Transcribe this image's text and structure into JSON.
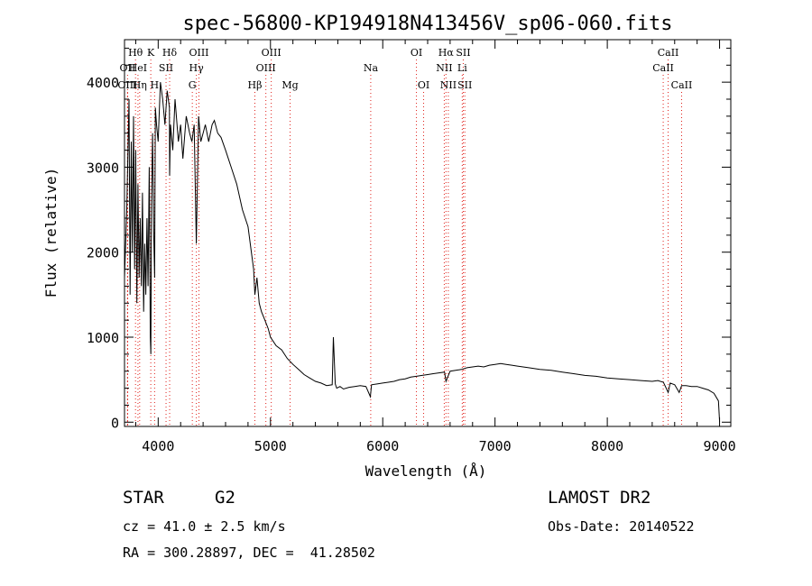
{
  "chart_data": {
    "type": "line",
    "title": "spec-56800-KP194918N413456V_sp06-060.fits",
    "xlabel": "Wavelength (Å)",
    "ylabel": "Flux (relative)",
    "xlim": [
      3700,
      9100
    ],
    "ylim": [
      -50,
      4500
    ],
    "x_ticks": [
      4000,
      5000,
      6000,
      7000,
      8000,
      9000
    ],
    "y_ticks": [
      0,
      1000,
      2000,
      3000,
      4000
    ],
    "grid": false,
    "series": [
      {
        "x": [
          3700,
          3720,
          3740,
          3750,
          3760,
          3770,
          3780,
          3790,
          3800,
          3810,
          3820,
          3830,
          3840,
          3850,
          3860,
          3870,
          3880,
          3890,
          3900,
          3910,
          3920,
          3930,
          3935,
          3940,
          3950,
          3960,
          3968,
          3975,
          3985,
          4000,
          4020,
          4040,
          4060,
          4080,
          4100,
          4102,
          4110,
          4130,
          4150,
          4180,
          4200,
          4220,
          4250,
          4280,
          4300,
          4320,
          4340,
          4360,
          4380,
          4400,
          4420,
          4450,
          4480,
          4500,
          4530,
          4560,
          4600,
          4650,
          4700,
          4750,
          4800,
          4830,
          4850,
          4861,
          4880,
          4900,
          4920,
          4950,
          4980,
          5000,
          5050,
          5100,
          5150,
          5200,
          5250,
          5300,
          5350,
          5400,
          5450,
          5500,
          5550,
          5560,
          5577,
          5590,
          5620,
          5650,
          5700,
          5750,
          5800,
          5850,
          5890,
          5900,
          5950,
          6000,
          6050,
          6100,
          6150,
          6200,
          6250,
          6300,
          6350,
          6400,
          6450,
          6500,
          6550,
          6563,
          6600,
          6650,
          6700,
          6750,
          6800,
          6850,
          6900,
          6950,
          7000,
          7050,
          7100,
          7150,
          7200,
          7300,
          7400,
          7500,
          7600,
          7700,
          7800,
          7900,
          8000,
          8100,
          8200,
          8300,
          8400,
          8450,
          8500,
          8542,
          8560,
          8600,
          8640,
          8662,
          8700,
          8750,
          8800,
          8850,
          8900,
          8950,
          8990,
          9000
        ],
        "y": [
          1700,
          2500,
          3800,
          1500,
          3300,
          2000,
          3600,
          1800,
          3200,
          1400,
          2800,
          1700,
          2400,
          1600,
          2700,
          1300,
          2100,
          1500,
          2400,
          1600,
          3000,
          1000,
          800,
          2600,
          3400,
          2200,
          1700,
          3700,
          3500,
          3300,
          4000,
          3800,
          3500,
          3900,
          3700,
          2900,
          3500,
          3200,
          3800,
          3300,
          3500,
          3100,
          3600,
          3400,
          3300,
          3500,
          2100,
          3600,
          3300,
          3400,
          3500,
          3300,
          3500,
          3550,
          3400,
          3350,
          3200,
          3000,
          2800,
          2500,
          2300,
          2000,
          1800,
          1500,
          1700,
          1400,
          1300,
          1200,
          1100,
          1000,
          900,
          850,
          750,
          680,
          620,
          560,
          520,
          480,
          460,
          430,
          440,
          1000,
          450,
          400,
          420,
          390,
          410,
          420,
          430,
          420,
          300,
          440,
          450,
          460,
          470,
          480,
          500,
          510,
          530,
          540,
          550,
          560,
          570,
          580,
          590,
          480,
          600,
          610,
          620,
          640,
          650,
          660,
          650,
          670,
          680,
          690,
          680,
          670,
          660,
          640,
          620,
          610,
          590,
          570,
          550,
          540,
          520,
          510,
          500,
          490,
          480,
          490,
          470,
          350,
          460,
          440,
          350,
          430,
          430,
          420,
          420,
          400,
          380,
          340,
          250,
          0
        ]
      }
    ],
    "spectral_lines": [
      {
        "label": "Hθ",
        "x": 3798,
        "row": 1
      },
      {
        "label": "OII",
        "x": 3727,
        "row": 2
      },
      {
        "label": "OIII",
        "x": 3727,
        "row": 3
      },
      {
        "label": "HeI",
        "x": 3820,
        "row": 2
      },
      {
        "label": "Hη",
        "x": 3835,
        "row": 3
      },
      {
        "label": "K",
        "x": 3934,
        "row": 1
      },
      {
        "label": "SII",
        "x": 4070,
        "row": 2
      },
      {
        "label": "H",
        "x": 3968,
        "row": 3
      },
      {
        "label": "Hδ",
        "x": 4102,
        "row": 1
      },
      {
        "label": "OIII",
        "x": 4363,
        "row": 1
      },
      {
        "label": "Hγ",
        "x": 4340,
        "row": 2
      },
      {
        "label": "G",
        "x": 4304,
        "row": 3
      },
      {
        "label": "OIII",
        "x": 5007,
        "row": 1
      },
      {
        "label": "OIII",
        "x": 4959,
        "row": 2
      },
      {
        "label": "Hβ",
        "x": 4861,
        "row": 3
      },
      {
        "label": "Mg",
        "x": 5175,
        "row": 3
      },
      {
        "label": "Na",
        "x": 5893,
        "row": 2
      },
      {
        "label": "OI",
        "x": 6300,
        "row": 1
      },
      {
        "label": "OI",
        "x": 6364,
        "row": 3
      },
      {
        "label": "Hα",
        "x": 6563,
        "row": 1
      },
      {
        "label": "SII",
        "x": 6717,
        "row": 1
      },
      {
        "label": "NII",
        "x": 6548,
        "row": 2
      },
      {
        "label": "Li",
        "x": 6708,
        "row": 2
      },
      {
        "label": "NII",
        "x": 6584,
        "row": 3
      },
      {
        "label": "SII",
        "x": 6731,
        "row": 3
      },
      {
        "label": "CaII",
        "x": 8542,
        "row": 1
      },
      {
        "label": "CaII",
        "x": 8498,
        "row": 2
      },
      {
        "label": "CaII",
        "x": 8662,
        "row": 3
      }
    ],
    "line_color": "#000000",
    "marker_color": "#e0201a"
  },
  "info": {
    "class": "STAR",
    "subclass": "G2",
    "survey": "LAMOST DR2",
    "cz": "cz = 41.0 ± 2.5 km/s",
    "obs_date": "Obs-Date: 20140522",
    "radec": "RA = 300.28897, DEC =  41.28502"
  }
}
